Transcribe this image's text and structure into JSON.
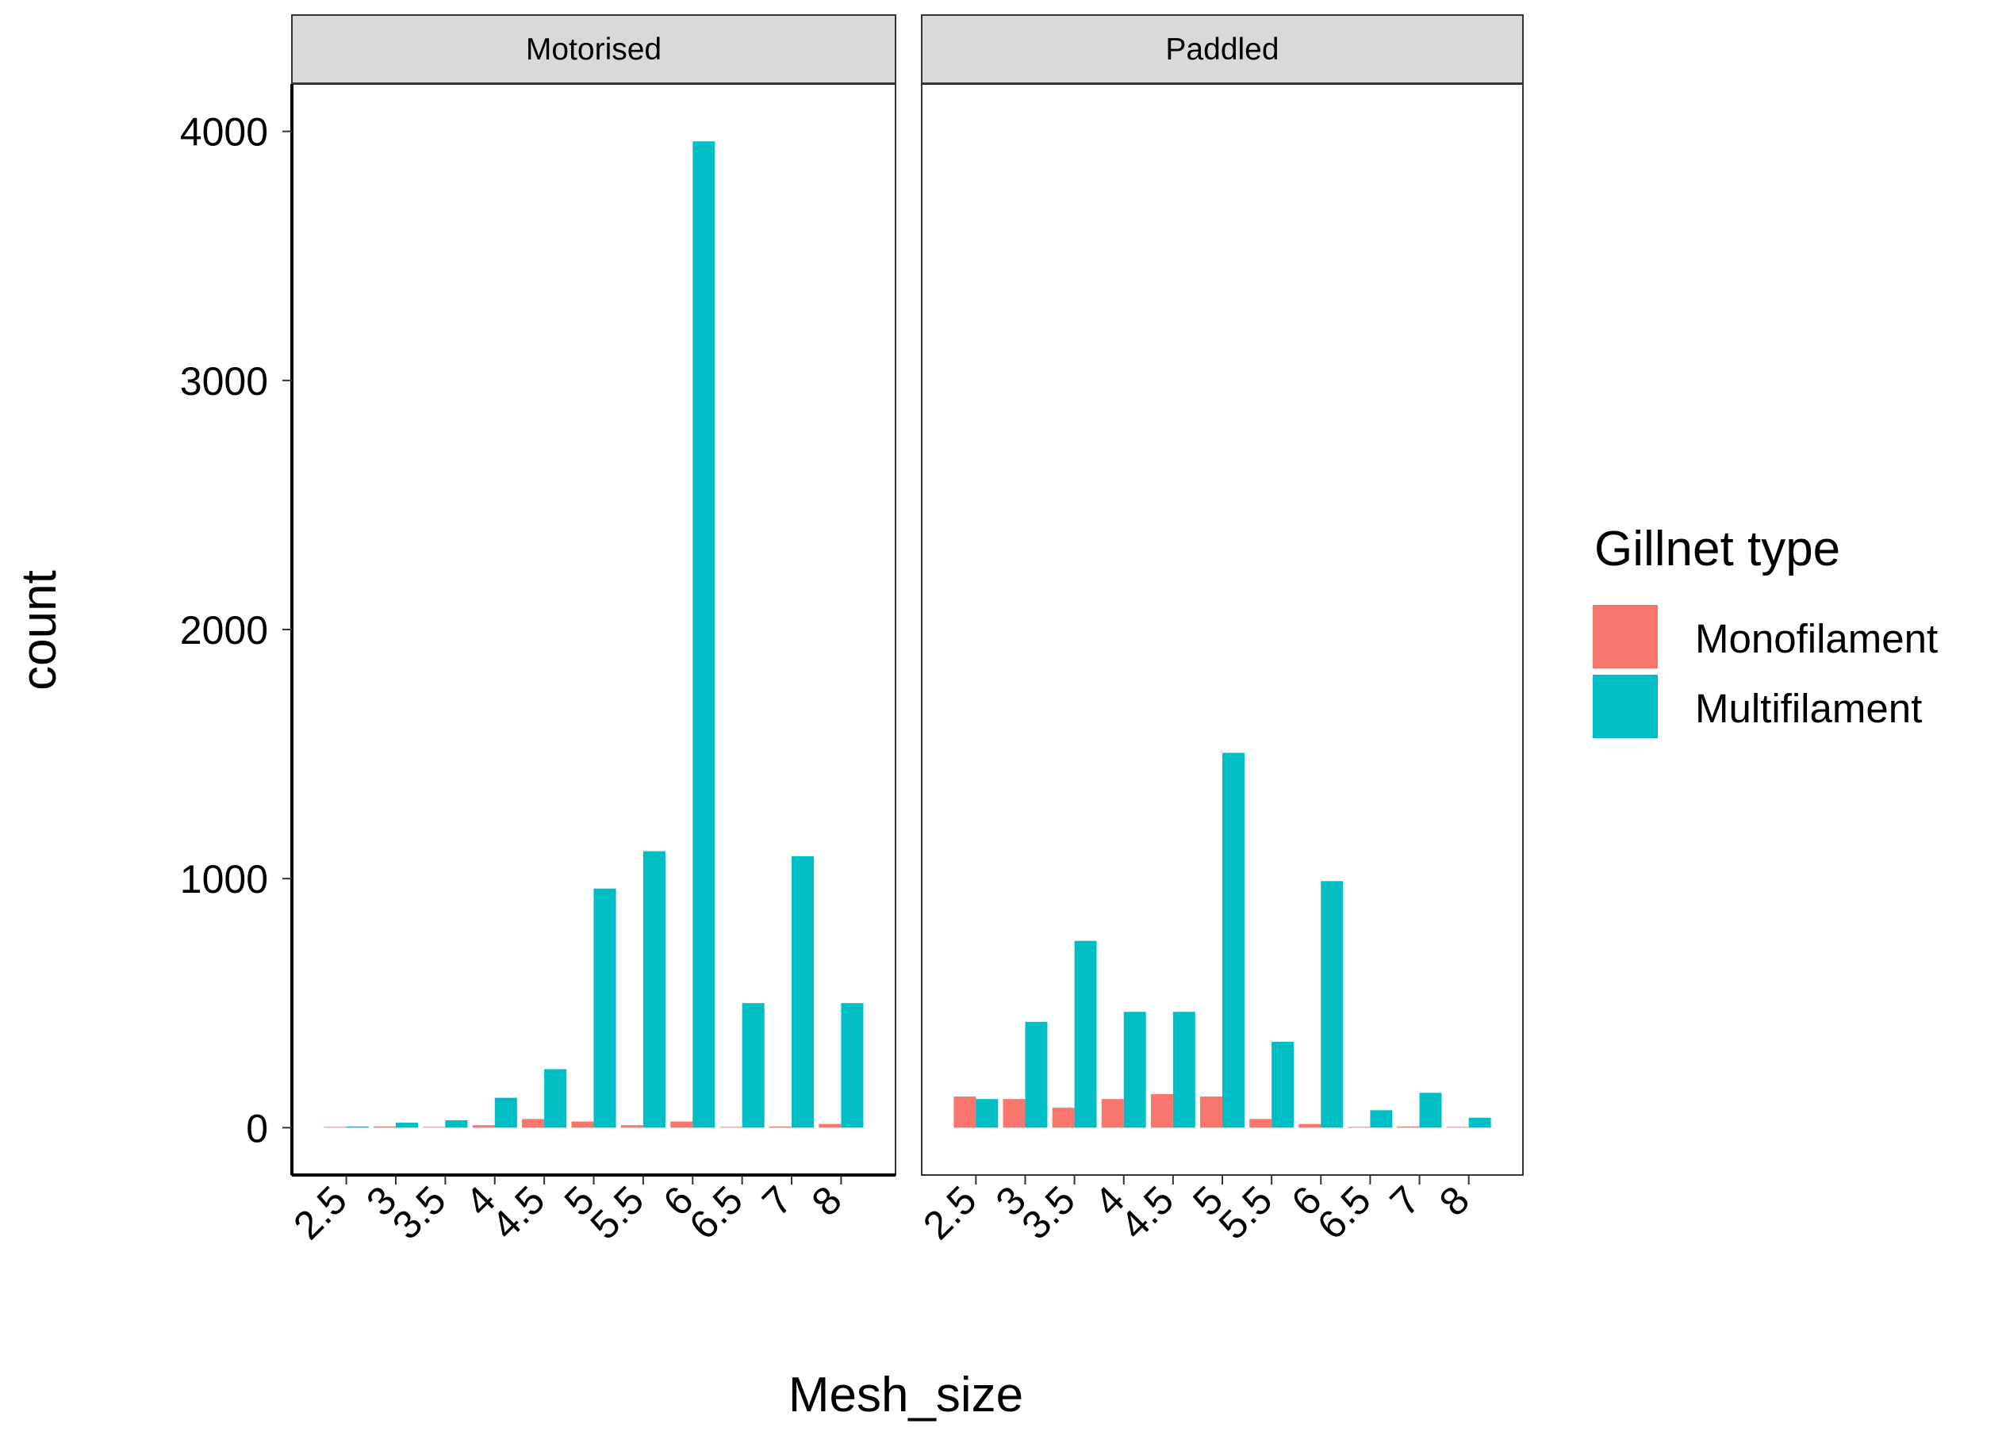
{
  "chart_data": {
    "type": "bar",
    "title": "",
    "xlabel": "Mesh_size",
    "ylabel": "count",
    "ylim": [
      -190,
      4190
    ],
    "yticks": [
      0,
      1000,
      2000,
      3000,
      4000
    ],
    "categories": [
      "2.5",
      "3",
      "3.5",
      "4",
      "4.5",
      "5",
      "5.5",
      "6",
      "6.5",
      "7",
      "8"
    ],
    "legend": {
      "title": "Gillnet type",
      "position": "right"
    },
    "colors": {
      "Monofilament": "#F8766D",
      "Multifilament": "#00BFC4",
      "strip": "#D9D9D9"
    },
    "facets": [
      {
        "label": "Motorised",
        "series": [
          {
            "name": "Monofilament",
            "values": [
              3,
              5,
              3,
              10,
              35,
              25,
              10,
              25,
              3,
              5,
              15
            ]
          },
          {
            "name": "Multifilament",
            "values": [
              5,
              20,
              30,
              120,
              235,
              960,
              1110,
              3960,
              500,
              1090,
              500
            ]
          }
        ]
      },
      {
        "label": "Paddled",
        "series": [
          {
            "name": "Monofilament",
            "values": [
              125,
              115,
              80,
              115,
              135,
              125,
              35,
              15,
              3,
              5,
              3
            ]
          },
          {
            "name": "Multifilament",
            "values": [
              115,
              425,
              750,
              465,
              465,
              1505,
              345,
              990,
              70,
              140,
              40
            ]
          }
        ]
      }
    ]
  }
}
